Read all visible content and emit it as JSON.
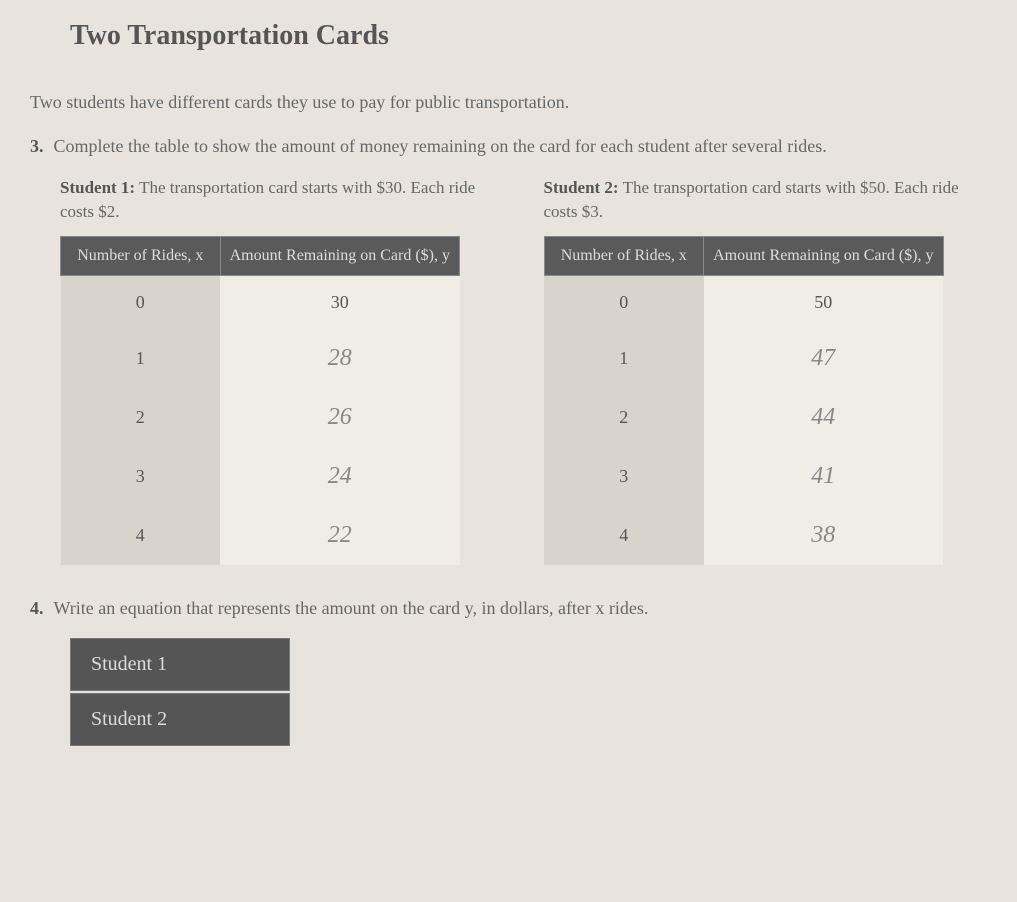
{
  "title": "Two Transportation Cards",
  "intro": "Two students have different cards they use to pay for public transportation.",
  "q3": {
    "number": "3.",
    "text": "Complete the table to show the amount of money remaining on the card for each student after several rides.",
    "student1": {
      "label": "Student 1:",
      "desc": "The transportation card starts with $30. Each ride costs $2.",
      "header_rides": "Number of Rides, x",
      "header_amount": "Amount Remaining on Card ($), y",
      "rows": [
        {
          "rides": "0",
          "amount": "30",
          "handwritten": false
        },
        {
          "rides": "1",
          "amount": "28",
          "handwritten": true
        },
        {
          "rides": "2",
          "amount": "26",
          "handwritten": true
        },
        {
          "rides": "3",
          "amount": "24",
          "handwritten": true
        },
        {
          "rides": "4",
          "amount": "22",
          "handwritten": true
        }
      ]
    },
    "student2": {
      "label": "Student 2:",
      "desc": "The transportation card starts with $50. Each ride costs $3.",
      "header_rides": "Number of Rides, x",
      "header_amount": "Amount Remaining on Card ($), y",
      "rows": [
        {
          "rides": "0",
          "amount": "50",
          "handwritten": false
        },
        {
          "rides": "1",
          "amount": "47",
          "handwritten": true
        },
        {
          "rides": "2",
          "amount": "44",
          "handwritten": true
        },
        {
          "rides": "3",
          "amount": "41",
          "handwritten": true
        },
        {
          "rides": "4",
          "amount": "38",
          "handwritten": true
        }
      ]
    }
  },
  "q4": {
    "number": "4.",
    "text": "Write an equation that represents the amount on the card y, in dollars, after x rides.",
    "student1_label": "Student 1",
    "student2_label": "Student 2"
  },
  "colors": {
    "page_bg": "#e8e4dd",
    "header_bg": "#5a5a5a",
    "header_fg": "#dddddd",
    "cell_bg": "#f0ede6",
    "cell_alt_bg": "#d8d4cc",
    "text_color": "#555555",
    "handwritten_color": "#888888"
  }
}
